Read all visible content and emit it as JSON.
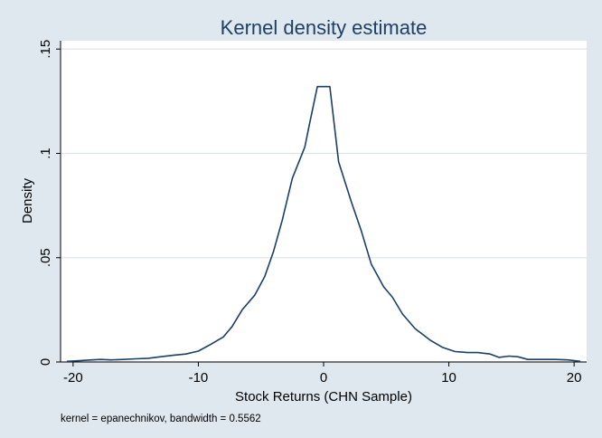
{
  "chart_data": {
    "type": "line",
    "title": "Kernel density estimate",
    "xlabel": "Stock Returns (CHN Sample)",
    "ylabel": "Density",
    "note": "kernel = epanechnikov, bandwidth = 0.5562",
    "xlim": [
      -21,
      21
    ],
    "ylim": [
      0,
      0.154
    ],
    "x_ticks": [
      {
        "value": -20,
        "label": "-20"
      },
      {
        "value": -10,
        "label": "-10"
      },
      {
        "value": 0,
        "label": "0"
      },
      {
        "value": 10,
        "label": "10"
      },
      {
        "value": 20,
        "label": "20"
      }
    ],
    "y_ticks": [
      {
        "value": 0,
        "label": "0"
      },
      {
        "value": 0.05,
        "label": ".05"
      },
      {
        "value": 0.1,
        "label": ".1"
      },
      {
        "value": 0.15,
        "label": ".15"
      }
    ],
    "grid": true,
    "series": [
      {
        "color": "#1b3f66",
        "x": [
          -20.5,
          -19.5,
          -18.5,
          -17.8,
          -17,
          -16,
          -15,
          -14,
          -13,
          -12,
          -11,
          -10,
          -9,
          -8,
          -7.3,
          -6.5,
          -5.5,
          -4.7,
          -4,
          -3.3,
          -2.5,
          -1.5,
          -1.2,
          -0.5,
          0.5,
          1.2,
          2.2,
          3,
          3.8,
          4.8,
          5.5,
          6.3,
          7.3,
          8.5,
          9.5,
          10.5,
          11.5,
          12.3,
          13.3,
          14,
          14.8,
          15.5,
          16.3,
          17.3,
          18.5,
          19.5,
          20.5
        ],
        "y": [
          0.0003,
          0.0006,
          0.001,
          0.0012,
          0.001,
          0.0012,
          0.0015,
          0.0018,
          0.0025,
          0.0032,
          0.0038,
          0.0052,
          0.0085,
          0.012,
          0.017,
          0.025,
          0.032,
          0.041,
          0.053,
          0.068,
          0.088,
          0.103,
          0.112,
          0.132,
          0.132,
          0.096,
          0.077,
          0.063,
          0.047,
          0.036,
          0.031,
          0.023,
          0.016,
          0.0105,
          0.007,
          0.005,
          0.0045,
          0.0045,
          0.0038,
          0.0022,
          0.0028,
          0.0025,
          0.0012,
          0.0012,
          0.0012,
          0.001,
          0.0003
        ]
      }
    ]
  }
}
